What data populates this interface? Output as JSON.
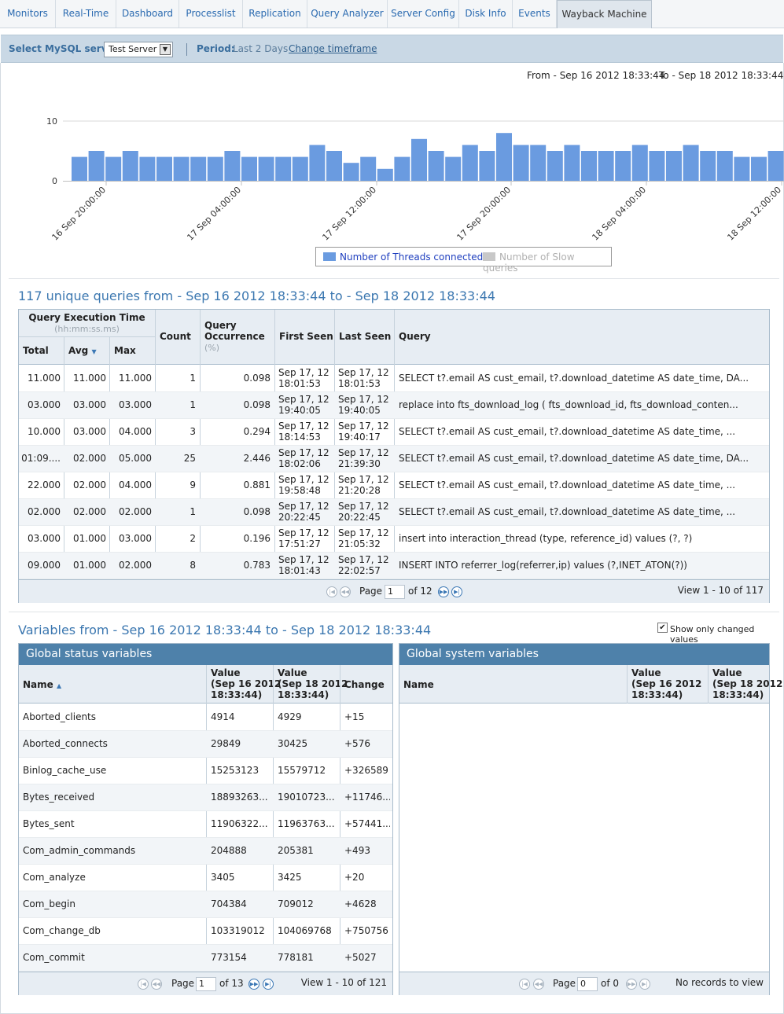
{
  "tabs": [
    "Monitors",
    "Real-Time",
    "Dashboard",
    "Processlist",
    "Replication",
    "Query Analyzer",
    "Server Config",
    "Disk Info",
    "Events",
    "Wayback Machine"
  ],
  "active_tab": "Wayback Machine",
  "server_bar": {
    "label": "Select MySQL server",
    "selected_server": "Test Server",
    "period_label": "Period:",
    "period_value": "Last 2 Days",
    "change_link": "Change timeframe"
  },
  "range": {
    "from": "From - Sep 16 2012 18:33:44",
    "to": "To - Sep 18 2012 18:33:44"
  },
  "chart_data": {
    "type": "bar",
    "title": "",
    "xlabel": "",
    "ylabel": "",
    "ylim": [
      0,
      10
    ],
    "y_ticks": [
      "0",
      "10"
    ],
    "x_tick_labels": [
      "16 Sep 20:00:00",
      "17 Sep 04:00:00",
      "17 Sep 12:00:00",
      "17 Sep 20:00:00",
      "18 Sep 04:00:00",
      "18 Sep 12:00:00"
    ],
    "series": [
      {
        "name": "Number of Threads connected",
        "color": "#6a9be0",
        "visible": true,
        "values": [
          4,
          5,
          4,
          5,
          4,
          4,
          4,
          4,
          4,
          5,
          4,
          4,
          4,
          4,
          6,
          5,
          3,
          4,
          2,
          4,
          7,
          5,
          4,
          6,
          5,
          8,
          6,
          6,
          5,
          6,
          5,
          5,
          5,
          6,
          5,
          5,
          6,
          5,
          5,
          4,
          4,
          5
        ]
      },
      {
        "name": "Number of Slow queries",
        "color": "#c8c8c8",
        "visible": false,
        "values": []
      }
    ],
    "legend_position": "bottom"
  },
  "queries": {
    "title": "117 unique queries from - Sep 16 2012 18:33:44 to - Sep 18 2012 18:33:44",
    "headers": {
      "exec_group": "Query Execution Time",
      "exec_sub": "(hh:mm:ss.ms)",
      "total": "Total",
      "avg": "Avg",
      "max": "Max",
      "count": "Count",
      "occurrence": "Query Occurrence",
      "occurrence_sub": "(%)",
      "first_seen": "First Seen",
      "last_seen": "Last Seen",
      "query": "Query"
    },
    "rows": [
      {
        "total": "11.000",
        "avg": "11.000",
        "max": "11.000",
        "count": "1",
        "occ": "0.098",
        "first1": "Sep 17, 12",
        "first2": "18:01:53",
        "last1": "Sep 17, 12",
        "last2": "18:01:53",
        "query": "SELECT t?.email AS cust_email, t?.download_datetime AS date_time, DA..."
      },
      {
        "total": "03.000",
        "avg": "03.000",
        "max": "03.000",
        "count": "1",
        "occ": "0.098",
        "first1": "Sep 17, 12",
        "first2": "19:40:05",
        "last1": "Sep 17, 12",
        "last2": "19:40:05",
        "query": "replace into fts_download_log ( fts_download_id, fts_download_conten..."
      },
      {
        "total": "10.000",
        "avg": "03.000",
        "max": "04.000",
        "count": "3",
        "occ": "0.294",
        "first1": "Sep 17, 12",
        "first2": "18:14:53",
        "last1": "Sep 17, 12",
        "last2": "19:40:17",
        "query": "SELECT t?.email AS cust_email, t?.download_datetime AS date_time, ..."
      },
      {
        "total": "01:09....",
        "avg": "02.000",
        "max": "05.000",
        "count": "25",
        "occ": "2.446",
        "first1": "Sep 17, 12",
        "first2": "18:02:06",
        "last1": "Sep 17, 12",
        "last2": "21:39:30",
        "query": "SELECT t?.email AS cust_email, t?.download_datetime AS date_time, DA..."
      },
      {
        "total": "22.000",
        "avg": "02.000",
        "max": "04.000",
        "count": "9",
        "occ": "0.881",
        "first1": "Sep 17, 12",
        "first2": "19:58:48",
        "last1": "Sep 17, 12",
        "last2": "21:20:28",
        "query": "SELECT t?.email AS cust_email, t?.download_datetime AS date_time, ..."
      },
      {
        "total": "02.000",
        "avg": "02.000",
        "max": "02.000",
        "count": "1",
        "occ": "0.098",
        "first1": "Sep 17, 12",
        "first2": "20:22:45",
        "last1": "Sep 17, 12",
        "last2": "20:22:45",
        "query": "SELECT t?.email AS cust_email, t?.download_datetime AS date_time, ..."
      },
      {
        "total": "03.000",
        "avg": "01.000",
        "max": "03.000",
        "count": "2",
        "occ": "0.196",
        "first1": "Sep 17, 12",
        "first2": "17:51:27",
        "last1": "Sep 17, 12",
        "last2": "21:05:32",
        "query": "insert into interaction_thread (type, reference_id) values (?, ?)"
      },
      {
        "total": "09.000",
        "avg": "01.000",
        "max": "02.000",
        "count": "8",
        "occ": "0.783",
        "first1": "Sep 17, 12",
        "first2": "18:01:43",
        "last1": "Sep 17, 12",
        "last2": "22:02:57",
        "query": "INSERT INTO referrer_log(referrer,ip) values (?,INET_ATON(?))"
      }
    ],
    "pager": {
      "page_label": "Page",
      "page": "1",
      "of": "of 12",
      "view": "View 1 - 10 of 117"
    }
  },
  "variables": {
    "title": "Variables from - Sep 16 2012 18:33:44 to - Sep 18 2012 18:33:44",
    "show_changed_label": "Show only changed values",
    "show_changed_checked": true,
    "status": {
      "title": "Global status variables",
      "headers": {
        "name": "Name",
        "v1a": "Value",
        "v1b": "(Sep 16 2012",
        "v1c": "18:33:44)",
        "v2a": "Value",
        "v2b": "(Sep 18 2012",
        "v2c": "18:33:44)",
        "change": "Change"
      },
      "rows": [
        {
          "name": "Aborted_clients",
          "v1": "4914",
          "v2": "4929",
          "change": "+15"
        },
        {
          "name": "Aborted_connects",
          "v1": "29849",
          "v2": "30425",
          "change": "+576"
        },
        {
          "name": "Binlog_cache_use",
          "v1": "15253123",
          "v2": "15579712",
          "change": "+326589"
        },
        {
          "name": "Bytes_received",
          "v1": "18893263...",
          "v2": "19010723...",
          "change": "+11746..."
        },
        {
          "name": "Bytes_sent",
          "v1": "11906322...",
          "v2": "11963763...",
          "change": "+57441..."
        },
        {
          "name": "Com_admin_commands",
          "v1": "204888",
          "v2": "205381",
          "change": "+493"
        },
        {
          "name": "Com_analyze",
          "v1": "3405",
          "v2": "3425",
          "change": "+20"
        },
        {
          "name": "Com_begin",
          "v1": "704384",
          "v2": "709012",
          "change": "+4628"
        },
        {
          "name": "Com_change_db",
          "v1": "103319012",
          "v2": "104069768",
          "change": "+750756"
        },
        {
          "name": "Com_commit",
          "v1": "773154",
          "v2": "778181",
          "change": "+5027"
        }
      ],
      "pager": {
        "page_label": "Page",
        "page": "1",
        "of": "of 13",
        "view": "View 1 - 10 of 121"
      }
    },
    "system": {
      "title": "Global system variables",
      "headers": {
        "name": "Name",
        "v1a": "Value",
        "v1b": "(Sep 16 2012",
        "v1c": "18:33:44)",
        "v2a": "Value",
        "v2b": "(Sep 18 2012",
        "v2c": "18:33:44)"
      },
      "pager": {
        "page_label": "Page",
        "page": "0",
        "of": "of 0",
        "view": "No records to view"
      }
    }
  }
}
